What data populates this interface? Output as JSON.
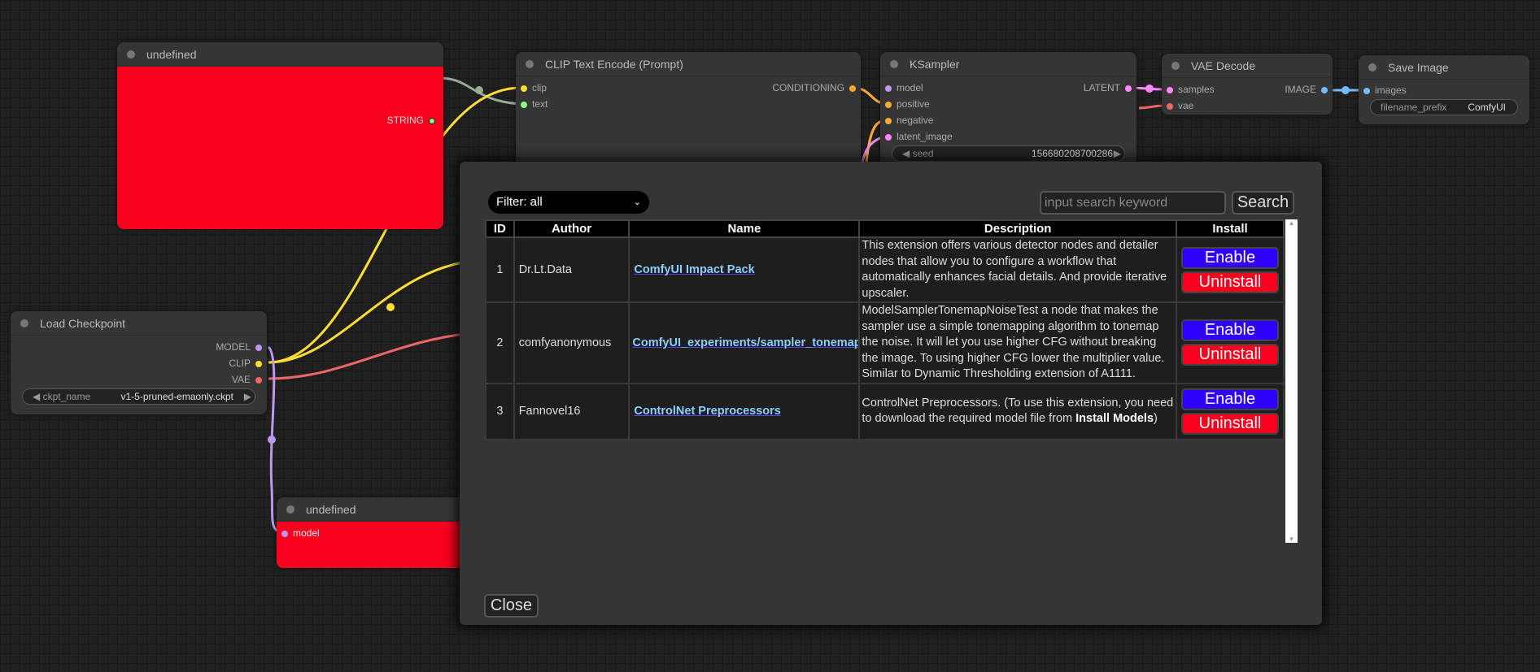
{
  "nodes": {
    "undefined_top": {
      "title": "undefined",
      "outputs": [
        "STRING"
      ]
    },
    "clip_text_encode": {
      "title": "CLIP Text Encode (Prompt)",
      "inputs": [
        "clip",
        "text"
      ],
      "outputs": [
        "CONDITIONING"
      ]
    },
    "ksampler": {
      "title": "KSampler",
      "inputs": [
        "model",
        "positive",
        "negative",
        "latent_image"
      ],
      "outputs": [
        "LATENT"
      ],
      "seed_label": "seed",
      "seed_value": "156680208700286"
    },
    "vae_decode": {
      "title": "VAE Decode",
      "inputs": [
        "samples",
        "vae"
      ],
      "outputs": [
        "IMAGE"
      ]
    },
    "save_image": {
      "title": "Save Image",
      "inputs": [
        "images"
      ],
      "widget_label": "filename_prefix",
      "widget_value": "ComfyUI"
    },
    "load_checkpoint": {
      "title": "Load Checkpoint",
      "outputs": [
        "MODEL",
        "CLIP",
        "VAE"
      ],
      "widget_label": "ckpt_name",
      "widget_value": "v1-5-pruned-emaonly.ckpt"
    },
    "undefined_bottom": {
      "title": "undefined",
      "inputs": [
        "model"
      ]
    }
  },
  "colors": {
    "node_red": "#f8001e",
    "enable": "#3000ff",
    "uninstall": "#f8001e",
    "link": "#8ccfff"
  },
  "dialog": {
    "filter": "Filter: all",
    "search_placeholder": "input search keyword",
    "search_label": "Search",
    "close_label": "Close",
    "columns": [
      "ID",
      "Author",
      "Name",
      "Description",
      "Install"
    ],
    "rows": [
      {
        "id": "1",
        "author": "Dr.Lt.Data",
        "name": "ComfyUI Impact Pack",
        "description": "This extension offers various detector nodes and detailer nodes that allow you to configure a workflow that automatically enhances facial details. And provide iterative upscaler.",
        "enable": "Enable",
        "uninstall": "Uninstall"
      },
      {
        "id": "2",
        "author": "comfyanonymous",
        "name": "ComfyUI_experiments/sampler_tonemap",
        "description": "ModelSamplerTonemapNoiseTest a node that makes the sampler use a simple tonemapping algorithm to tonemap the noise. It will let you use higher CFG without breaking the image. To using higher CFG lower the multiplier value. Similar to Dynamic Thresholding extension of A1111.",
        "enable": "Enable",
        "uninstall": "Uninstall"
      },
      {
        "id": "3",
        "author": "Fannovel16",
        "name": "ControlNet Preprocessors",
        "description_pre": "ControlNet Preprocessors. (To use this extension, you need to download the required model file from ",
        "description_bold": "Install Models",
        "description_post": ")",
        "enable": "Enable",
        "uninstall": "Uninstall"
      }
    ]
  }
}
